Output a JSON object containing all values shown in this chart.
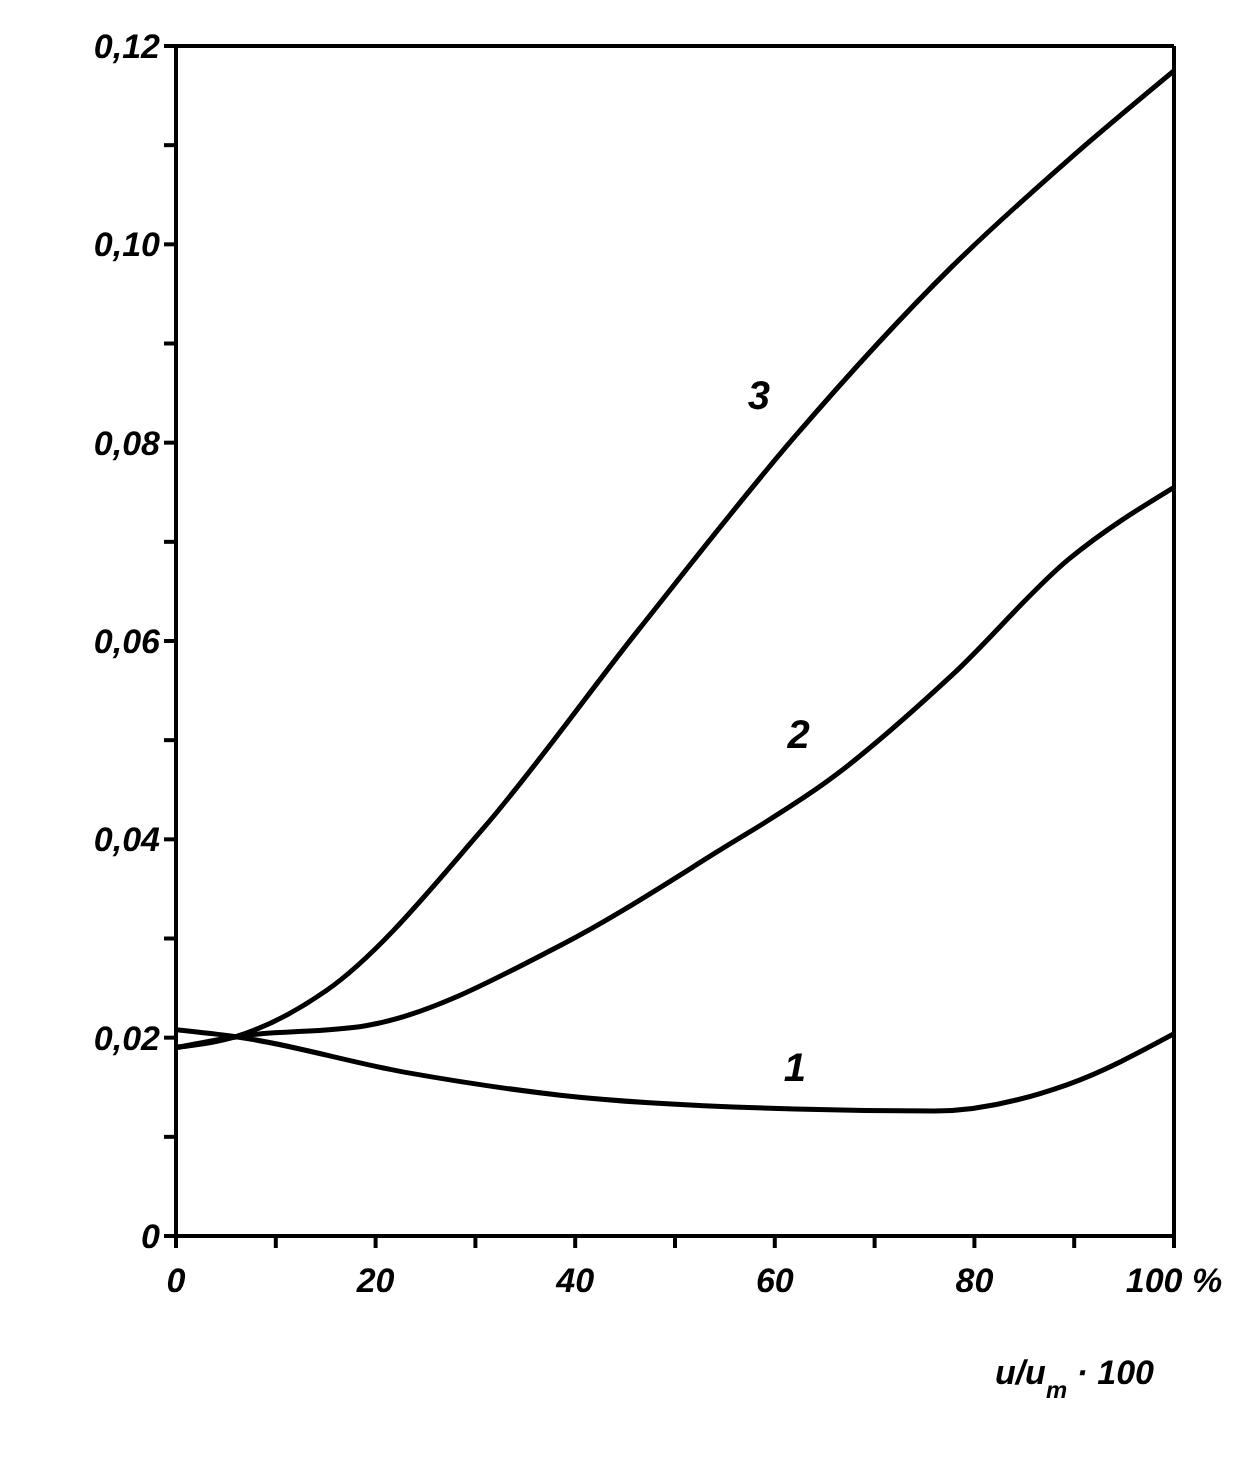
{
  "chart_data": {
    "type": "line",
    "xlabel": "u/u$_{m}$ · 100",
    "xlim": [
      0,
      100
    ],
    "xticks": [
      {
        "value": 0,
        "label": "0"
      },
      {
        "value": 10,
        "label": null
      },
      {
        "value": 20,
        "label": "20"
      },
      {
        "value": 30,
        "label": null
      },
      {
        "value": 40,
        "label": "40"
      },
      {
        "value": 50,
        "label": null
      },
      {
        "value": 60,
        "label": "60"
      },
      {
        "value": 70,
        "label": null
      },
      {
        "value": 80,
        "label": "80"
      },
      {
        "value": 90,
        "label": null
      },
      {
        "value": 100,
        "label": "100 %"
      }
    ],
    "ylim": [
      0,
      0.12
    ],
    "yticks": [
      {
        "value": 0,
        "label": "0"
      },
      {
        "value": 0.01,
        "label": null
      },
      {
        "value": 0.02,
        "label": "0,02"
      },
      {
        "value": 0.03,
        "label": null
      },
      {
        "value": 0.04,
        "label": "0,04"
      },
      {
        "value": 0.05,
        "label": null
      },
      {
        "value": 0.06,
        "label": "0,06"
      },
      {
        "value": 0.07,
        "label": null
      },
      {
        "value": 0.08,
        "label": "0,08"
      },
      {
        "value": 0.09,
        "label": null
      },
      {
        "value": 0.1,
        "label": "0,10"
      },
      {
        "value": 0.11,
        "label": null
      },
      {
        "value": 0.12,
        "label": "0,12"
      }
    ],
    "marker": "none",
    "line_style": "solid",
    "series": [
      {
        "name": "1",
        "color": "#000000",
        "x": [
          0,
          6,
          23,
          38.5,
          62,
          76,
          89.4,
          100
        ],
        "values": [
          0.0208,
          0.0201,
          0.0165,
          0.0142,
          0.0128,
          0.0126,
          0.0153,
          0.0204
        ]
      },
      {
        "name": "2",
        "color": "#000000",
        "x": [
          0,
          6,
          19,
          38.5,
          54,
          66,
          77.7,
          89.4,
          100
        ],
        "values": [
          0.019,
          0.0201,
          0.0212,
          0.0293,
          0.0386,
          0.0464,
          0.0565,
          0.0682,
          0.0755
        ]
      },
      {
        "name": "3",
        "color": "#000000",
        "x": [
          0,
          6,
          15,
          30.7,
          46.4,
          62,
          77.7,
          89.4,
          100
        ],
        "values": [
          0.019,
          0.0201,
          0.0247,
          0.041,
          0.0612,
          0.0806,
          0.0977,
          0.1085,
          0.1175
        ]
      }
    ]
  }
}
